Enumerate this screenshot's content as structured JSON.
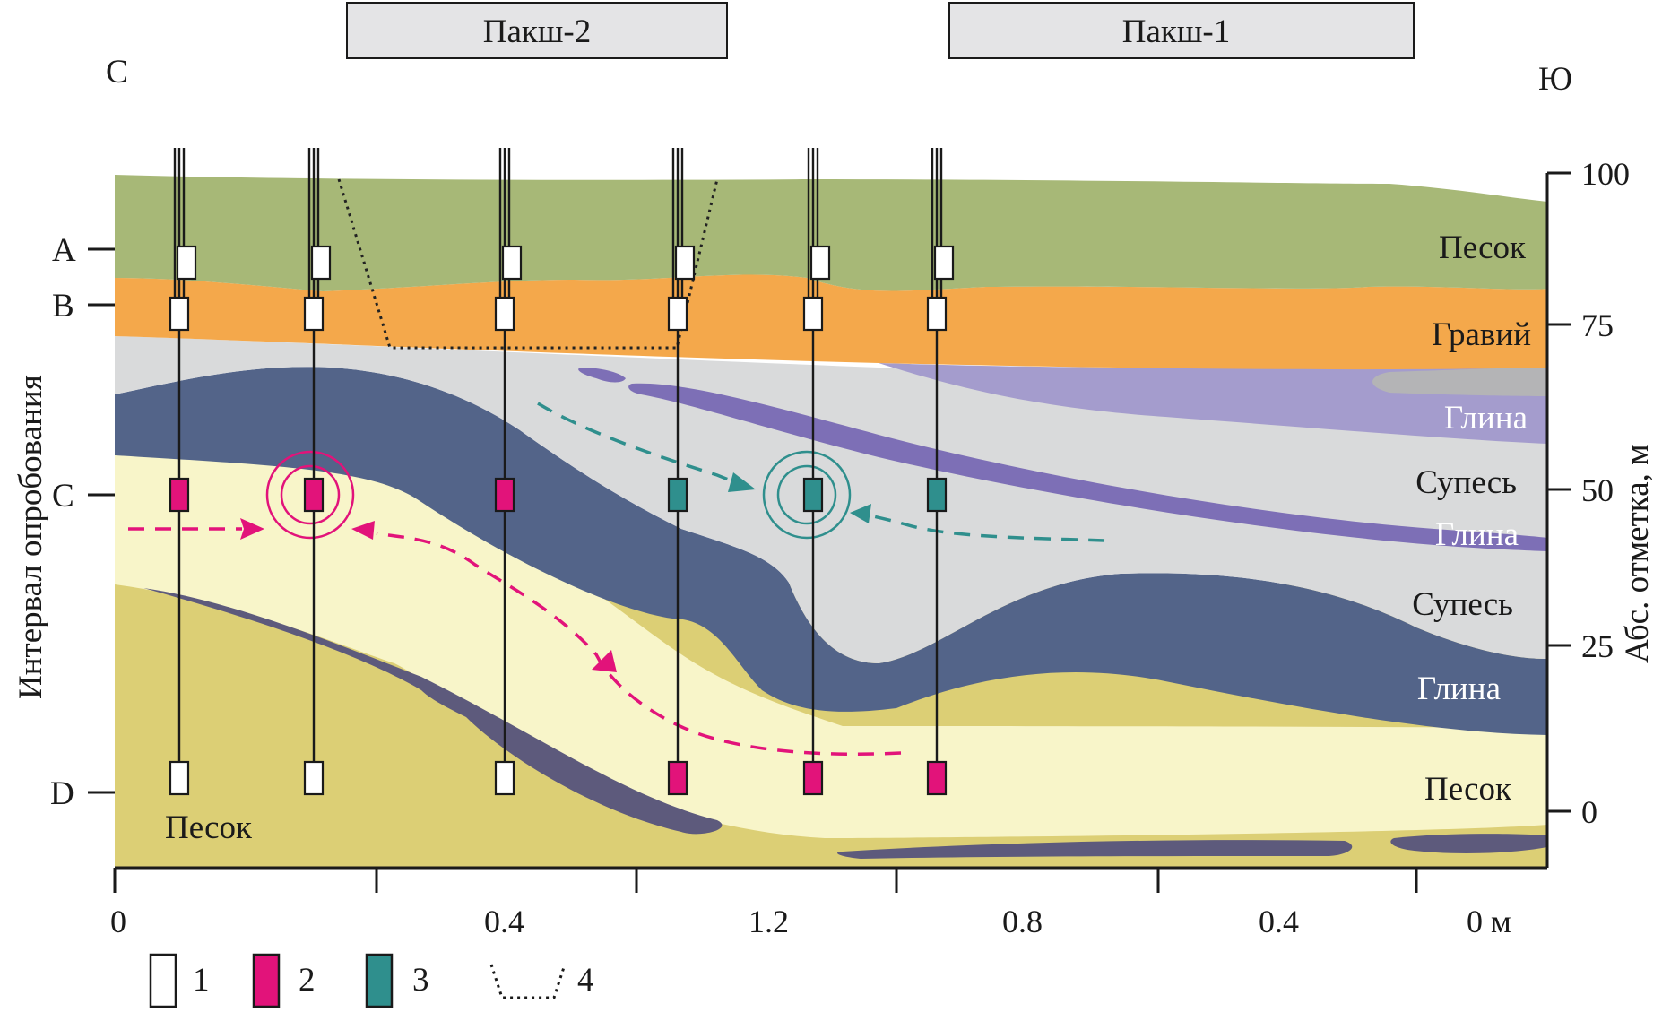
{
  "direction": {
    "north": "С",
    "south": "Ю"
  },
  "packers": [
    {
      "label": "Пакш-2"
    },
    {
      "label": "Пакш-1"
    }
  ],
  "sampling_axis": {
    "title": "Интервал опробования",
    "intervals": [
      "A",
      "B",
      "C",
      "D"
    ]
  },
  "elevation_axis": {
    "title": "Абс. отметка, м",
    "ticks": [
      "100",
      "75",
      "50",
      "25",
      "0"
    ]
  },
  "distance_axis": {
    "ticks": [
      "0",
      "0.4",
      "1.2",
      "0.8",
      "0.4",
      "0 м"
    ]
  },
  "layer_labels": {
    "sand_top": "Песок",
    "gravel": "Гравий",
    "clay_right": "Глина",
    "sandy_loam_1": "Супесь",
    "clay_thin": "Глина",
    "sandy_loam_2": "Супесь",
    "clay_main": "Глина",
    "sand_lower": "Песок",
    "sand_bottom": "Песок"
  },
  "legend": [
    {
      "num": "1",
      "kind": "white-sampler"
    },
    {
      "num": "2",
      "kind": "magenta-sampler"
    },
    {
      "num": "3",
      "kind": "teal-sampler"
    },
    {
      "num": "4",
      "kind": "packer-outline"
    }
  ],
  "colors": {
    "sand_top": "#a7b877",
    "gravel": "#f4a84b",
    "sandy_loam": "#d9dadb",
    "clay_dark": "#536489",
    "clay_purple": "#7d6fb6",
    "clay_light_purple": "#a49ccd",
    "sand_light": "#f8f5c9",
    "sand_bottom": "#dccf75",
    "clay_bottom": "#5d5a7c",
    "grey_lens": "#b4b4b6",
    "magenta": "#e2137a",
    "teal": "#2f8f8d"
  },
  "samplers": {
    "columns": [
      {
        "A": "white",
        "B": "white",
        "C": "magenta",
        "D": "white"
      },
      {
        "A": "white",
        "B": "white",
        "C": "magenta",
        "D": "white"
      },
      {
        "A": "white",
        "B": "white",
        "C": "magenta",
        "D": "white"
      },
      {
        "A": "white",
        "B": "white",
        "C": "teal",
        "D": "magenta"
      },
      {
        "A": "white",
        "B": "white",
        "C": "teal",
        "D": "magenta"
      },
      {
        "A": "white",
        "B": "white",
        "C": "teal",
        "D": "magenta"
      }
    ]
  }
}
